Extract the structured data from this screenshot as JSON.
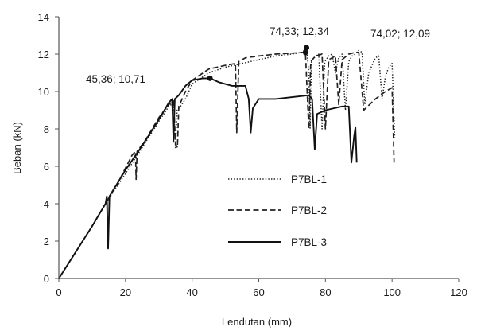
{
  "chart_data": {
    "type": "line",
    "xlabel": "Lendutan (mm)",
    "ylabel": "Beban (kN)",
    "xlim": [
      0,
      120
    ],
    "ylim": [
      0,
      14
    ],
    "x_ticks": [
      0,
      20,
      40,
      60,
      80,
      100,
      120
    ],
    "y_ticks": [
      0,
      2,
      4,
      6,
      8,
      10,
      12,
      14
    ],
    "grid": false,
    "legend_position": "center",
    "series": [
      {
        "name": "P7BL-1",
        "style": "dotted",
        "color": "#222222",
        "points": [
          [
            0,
            0
          ],
          [
            5,
            1.4
          ],
          [
            10,
            2.8
          ],
          [
            14,
            4.0
          ],
          [
            20,
            5.6
          ],
          [
            25,
            7.0
          ],
          [
            30,
            8.4
          ],
          [
            33,
            9.2
          ],
          [
            34.5,
            9.4
          ],
          [
            35,
            7.0
          ],
          [
            35.5,
            9.0
          ],
          [
            36.5,
            9.2
          ],
          [
            38,
            9.6
          ],
          [
            40,
            10.4
          ],
          [
            45,
            11.0
          ],
          [
            50,
            11.3
          ],
          [
            55,
            11.5
          ],
          [
            60,
            11.7
          ],
          [
            65,
            11.9
          ],
          [
            70,
            12.0
          ],
          [
            73,
            12.1
          ],
          [
            74.33,
            12.34
          ],
          [
            75,
            11.0
          ],
          [
            75.4,
            8.0
          ],
          [
            75.8,
            11.6
          ],
          [
            77,
            11.9
          ],
          [
            78,
            12.0
          ],
          [
            79,
            8.0
          ],
          [
            79.8,
            11.6
          ],
          [
            81,
            11.9
          ],
          [
            82,
            12.0
          ],
          [
            83,
            11.0
          ],
          [
            84,
            11.8
          ],
          [
            85,
            12.0
          ],
          [
            86,
            9.0
          ],
          [
            87,
            11.6
          ],
          [
            88,
            11.9
          ],
          [
            89,
            12.0
          ],
          [
            90,
            12.2
          ],
          [
            91,
            12.1
          ],
          [
            91.8,
            9.3
          ],
          [
            93,
            11.0
          ],
          [
            95,
            11.8
          ],
          [
            96,
            11.9
          ],
          [
            97,
            9.6
          ],
          [
            98,
            10.8
          ],
          [
            99,
            11.3
          ],
          [
            100,
            11.5
          ],
          [
            100.8,
            7.5
          ]
        ]
      },
      {
        "name": "P7BL-2",
        "style": "dashed",
        "color": "#222222",
        "points": [
          [
            0,
            0
          ],
          [
            5,
            1.4
          ],
          [
            10,
            2.8
          ],
          [
            14,
            4.0
          ],
          [
            18,
            5.2
          ],
          [
            22,
            6.6
          ],
          [
            23,
            6.8
          ],
          [
            23.2,
            5.3
          ],
          [
            23.5,
            6.8
          ],
          [
            26,
            7.4
          ],
          [
            30,
            8.6
          ],
          [
            33,
            9.3
          ],
          [
            34.5,
            9.5
          ],
          [
            35,
            7.2
          ],
          [
            35.6,
            7.0
          ],
          [
            36,
            9.2
          ],
          [
            38,
            10.0
          ],
          [
            40,
            10.6
          ],
          [
            45,
            11.2
          ],
          [
            50,
            11.4
          ],
          [
            53,
            11.5
          ],
          [
            53.4,
            7.8
          ],
          [
            54,
            11.6
          ],
          [
            56,
            11.8
          ],
          [
            60,
            11.9
          ],
          [
            65,
            12.0
          ],
          [
            70,
            12.05
          ],
          [
            74,
            12.1
          ],
          [
            75,
            8.0
          ],
          [
            75.6,
            11.6
          ],
          [
            77,
            11.9
          ],
          [
            79,
            12.0
          ],
          [
            80,
            8.0
          ],
          [
            81,
            11.7
          ],
          [
            83,
            11.9
          ],
          [
            84,
            9.3
          ],
          [
            85,
            11.7
          ],
          [
            87,
            12.0
          ],
          [
            89,
            12.1
          ],
          [
            90,
            12.09
          ],
          [
            91.5,
            9.0
          ],
          [
            95,
            9.6
          ],
          [
            98,
            10.0
          ],
          [
            100,
            10.2
          ],
          [
            100.6,
            6.2
          ]
        ]
      },
      {
        "name": "P7BL-3",
        "style": "solid",
        "color": "#111111",
        "points": [
          [
            0,
            0
          ],
          [
            5,
            1.4
          ],
          [
            10,
            2.8
          ],
          [
            14,
            4.0
          ],
          [
            14.4,
            4.4
          ],
          [
            14.8,
            1.6
          ],
          [
            15.2,
            4.4
          ],
          [
            20,
            5.8
          ],
          [
            25,
            7.1
          ],
          [
            30,
            8.5
          ],
          [
            33,
            9.4
          ],
          [
            34,
            9.6
          ],
          [
            34.4,
            7.3
          ],
          [
            34.8,
            9.6
          ],
          [
            36,
            9.8
          ],
          [
            38,
            10.3
          ],
          [
            40,
            10.6
          ],
          [
            43,
            10.7
          ],
          [
            45.36,
            10.71
          ],
          [
            48,
            10.5
          ],
          [
            52,
            10.3
          ],
          [
            56,
            10.3
          ],
          [
            57,
            9.6
          ],
          [
            57.6,
            7.8
          ],
          [
            58.2,
            9.1
          ],
          [
            60,
            9.6
          ],
          [
            65,
            9.6
          ],
          [
            70,
            9.7
          ],
          [
            75,
            9.8
          ],
          [
            76,
            9.6
          ],
          [
            76.8,
            6.9
          ],
          [
            77.5,
            8.8
          ],
          [
            80,
            9.0
          ],
          [
            85,
            9.2
          ],
          [
            87,
            9.2
          ],
          [
            87.8,
            6.2
          ],
          [
            88.6,
            7.6
          ],
          [
            89,
            8.1
          ],
          [
            89.4,
            6.2
          ]
        ]
      }
    ],
    "annotations": [
      {
        "text": "45,36; 10,71",
        "x": 45.36,
        "y": 10.71
      },
      {
        "text": "74,33; 12,34",
        "x": 74.33,
        "y": 12.34
      },
      {
        "text": "74,02; 12,09",
        "x": 74.02,
        "y": 12.09
      }
    ]
  }
}
